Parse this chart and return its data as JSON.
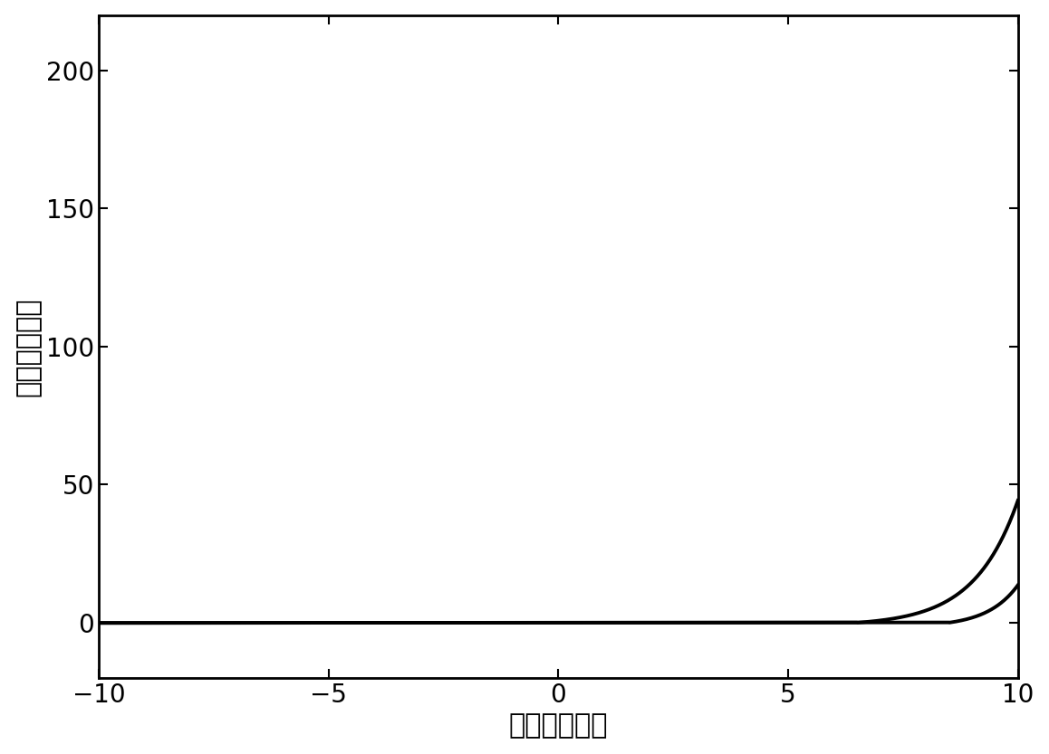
{
  "xlabel": "电压（伏特）",
  "ylabel": "电流（微安）",
  "xlim": [
    -10,
    10
  ],
  "ylim": [
    -20,
    220
  ],
  "xticks": [
    -10,
    -5,
    0,
    5,
    10
  ],
  "yticks": [
    0,
    50,
    100,
    150,
    200
  ],
  "line_color": "#000000",
  "line_width": 2.8,
  "background_color": "#ffffff",
  "xlabel_fontsize": 22,
  "ylabel_fontsize": 22,
  "tick_fontsize": 20,
  "curve1_onset": 6.5,
  "curve1_scale": 1.15,
  "curve2_onset": 8.5,
  "curve2_scale": 1.6
}
